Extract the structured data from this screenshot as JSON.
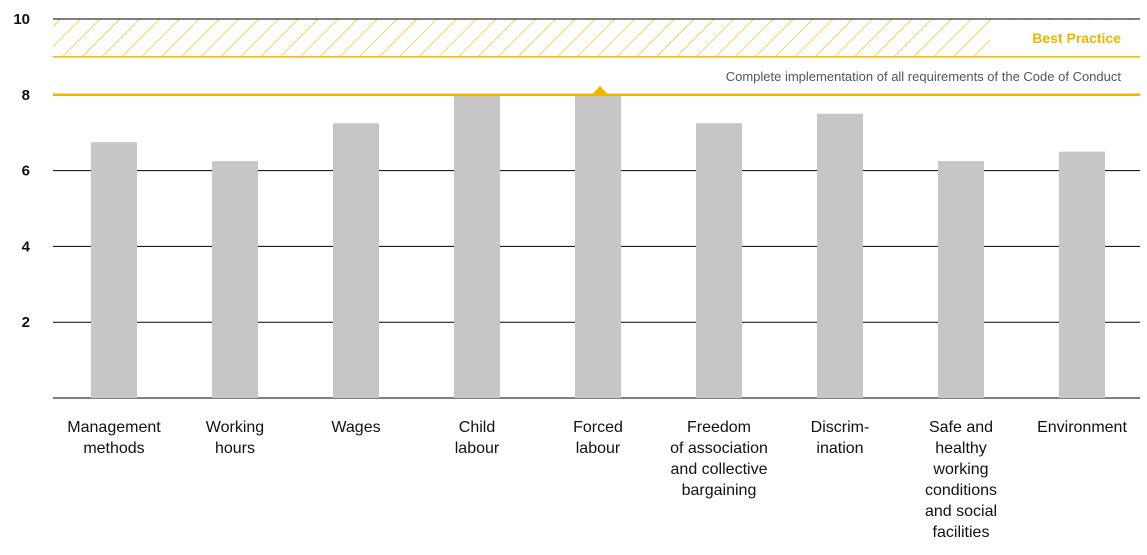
{
  "chart_data": {
    "type": "bar",
    "categories": [
      [
        "Management",
        "methods"
      ],
      [
        "Working",
        "hours"
      ],
      [
        "Wages"
      ],
      [
        "Child",
        "labour"
      ],
      [
        "Forced",
        "labour"
      ],
      [
        "Freedom",
        "of association",
        "and collective",
        "bargaining"
      ],
      [
        "Discrim-",
        "ination"
      ],
      [
        "Safe and",
        "healthy",
        "working",
        "conditions",
        "and social",
        "facilities"
      ],
      [
        "Environment"
      ]
    ],
    "values": [
      6.75,
      6.25,
      7.25,
      8.0,
      8.0,
      7.25,
      7.5,
      6.25,
      6.5
    ],
    "ylim": [
      0,
      10
    ],
    "yticks": [
      2,
      4,
      6,
      8,
      10
    ],
    "grid": true,
    "best_practice": {
      "label": "Best Practice",
      "range": [
        9,
        10
      ]
    },
    "target_line": {
      "value": 8,
      "label": "Complete implementation of all requirements of the Code of Conduct"
    },
    "colors": {
      "bar": "#c6c6c6",
      "accent": "#f0b400",
      "grid": "#000000"
    }
  }
}
